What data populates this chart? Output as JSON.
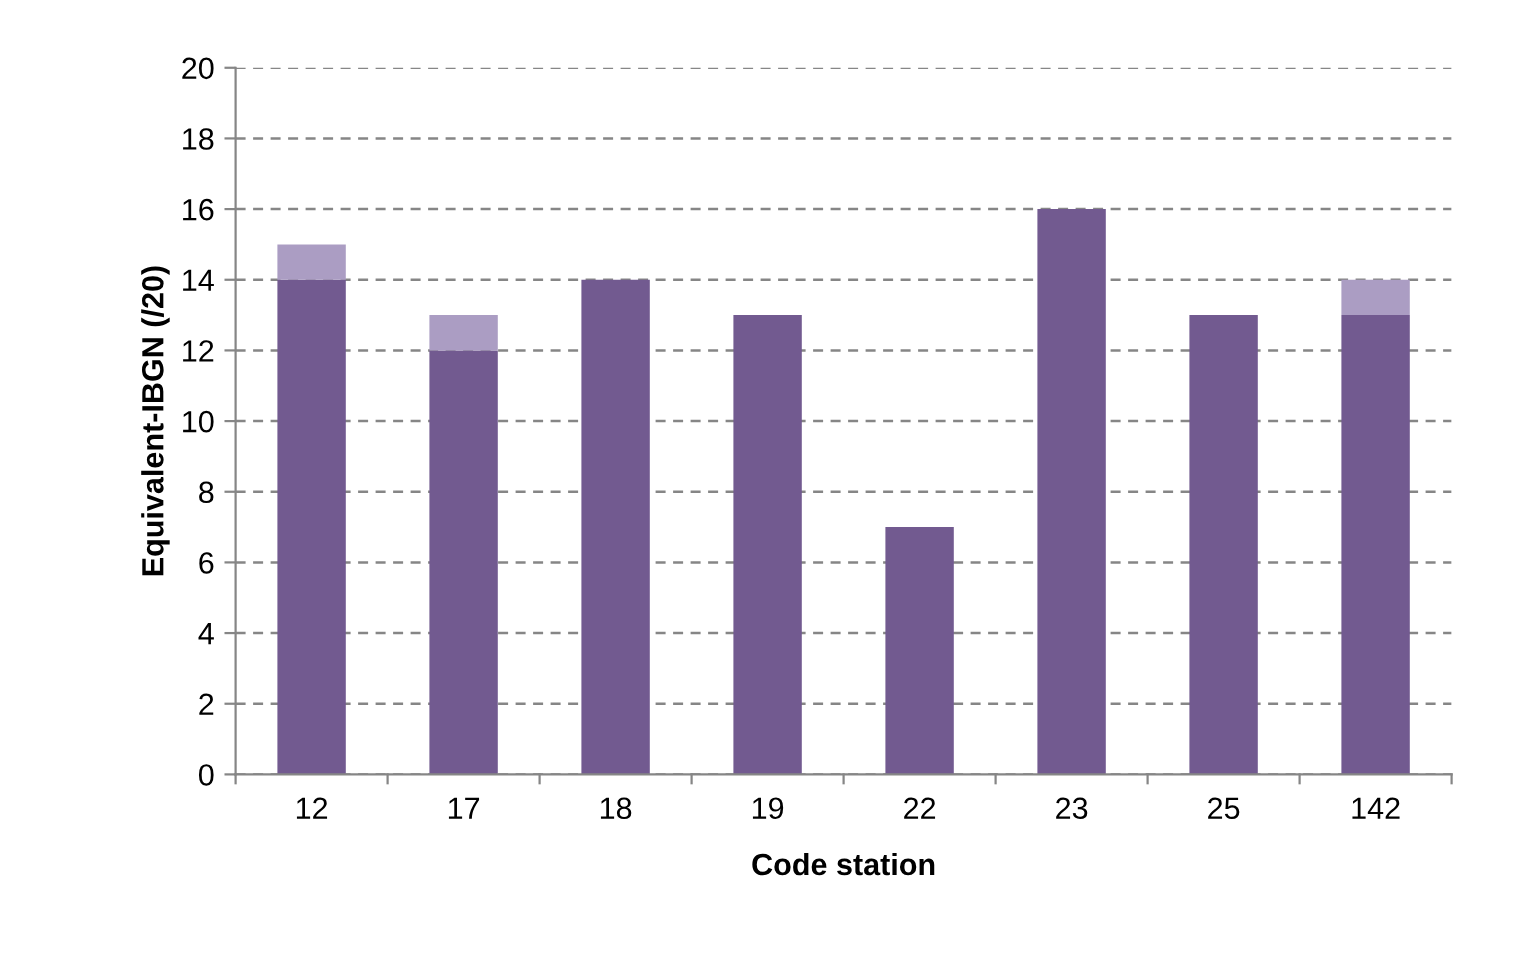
{
  "chart_data": {
    "type": "bar",
    "stacked": true,
    "xlabel": "Code station",
    "ylabel": "Equivalent-IBGN (/20)",
    "categories": [
      "12",
      "17",
      "18",
      "19",
      "22",
      "23",
      "25",
      "142"
    ],
    "series": [
      {
        "color": "#725a90",
        "values": [
          14,
          12,
          14,
          13,
          7,
          16,
          13,
          13
        ]
      },
      {
        "color": "#ab9dc3",
        "values": [
          1,
          1,
          0,
          0,
          0,
          0,
          0,
          1
        ]
      }
    ],
    "ylim": [
      0,
      20
    ],
    "yticks": [
      0,
      2,
      4,
      6,
      8,
      10,
      12,
      14,
      16,
      18,
      20
    ],
    "grid": "y"
  }
}
